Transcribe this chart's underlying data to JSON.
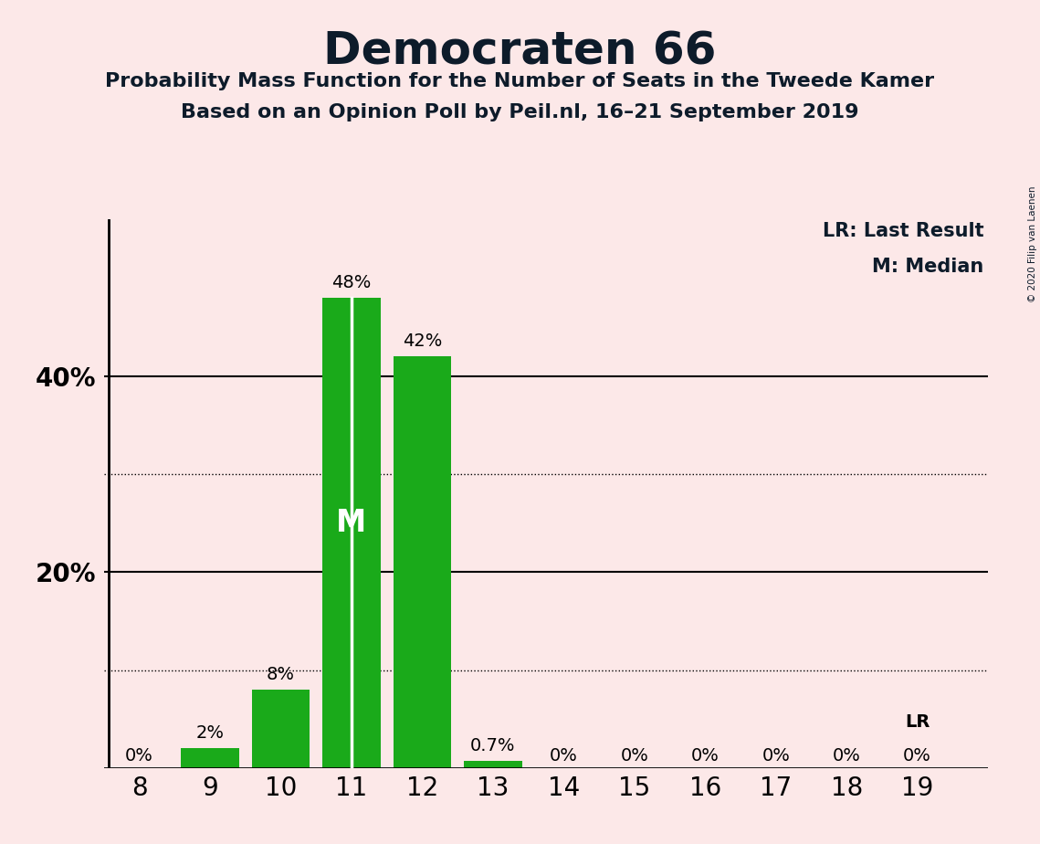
{
  "title": "Democraten 66",
  "subtitle1": "Probability Mass Function for the Number of Seats in the Tweede Kamer",
  "subtitle2": "Based on an Opinion Poll by Peil.nl, 16–21 September 2019",
  "copyright": "© 2020 Filip van Laenen",
  "seats": [
    8,
    9,
    10,
    11,
    12,
    13,
    14,
    15,
    16,
    17,
    18,
    19
  ],
  "probabilities": [
    0.0,
    0.02,
    0.08,
    0.48,
    0.42,
    0.007,
    0.0,
    0.0,
    0.0,
    0.0,
    0.0,
    0.0
  ],
  "bar_labels": [
    "0%",
    "2%",
    "8%",
    "48%",
    "42%",
    "0.7%",
    "0%",
    "0%",
    "0%",
    "0%",
    "0%",
    "0%"
  ],
  "bar_color": "#1aaa1a",
  "background_color": "#fce8e8",
  "median_seat": 11,
  "lr_seat": 19,
  "lr_label": "LR",
  "legend_lr": "LR: Last Result",
  "legend_m": "M: Median",
  "solid_yticks": [
    0.2,
    0.4
  ],
  "dotted_yticks": [
    0.1,
    0.3
  ],
  "ylim": [
    0,
    0.56
  ]
}
